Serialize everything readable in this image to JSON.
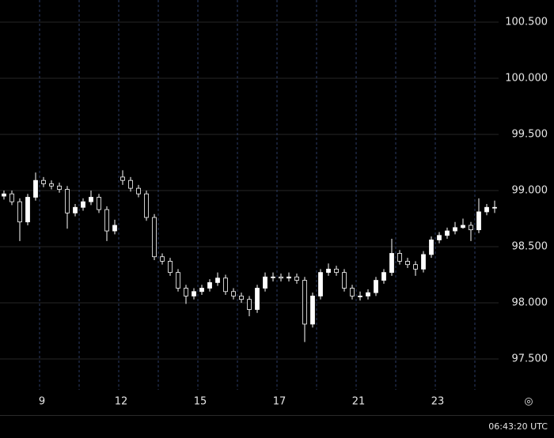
{
  "chart_data": {
    "type": "candlestick",
    "color": "#ffffff",
    "x": [
      0,
      1,
      2,
      3,
      4,
      5,
      6,
      7,
      8,
      9,
      10,
      11,
      12,
      13,
      14,
      15,
      16,
      17,
      18,
      19,
      20,
      21,
      22,
      23,
      24,
      25,
      26,
      27,
      28,
      29,
      30,
      31,
      32,
      33,
      34,
      35,
      36,
      37,
      38,
      39,
      40,
      41,
      42,
      43,
      44,
      45,
      46,
      47,
      48,
      49,
      50,
      51,
      52,
      53,
      54,
      55,
      56,
      57,
      58,
      59,
      60,
      61,
      62
    ],
    "open": [
      98.95,
      98.97,
      98.9,
      98.72,
      98.94,
      99.09,
      99.06,
      99.04,
      99.01,
      98.8,
      98.85,
      98.9,
      98.94,
      98.83,
      98.64,
      99.12,
      99.09,
      99.02,
      98.97,
      98.76,
      98.41,
      98.37,
      98.27,
      98.13,
      98.06,
      98.1,
      98.13,
      98.18,
      98.22,
      98.1,
      98.06,
      98.03,
      97.94,
      98.13,
      98.23,
      98.23,
      98.22,
      98.23,
      98.2,
      97.81,
      98.06,
      98.27,
      98.3,
      98.27,
      98.13,
      98.06,
      98.06,
      98.09,
      98.2,
      98.27,
      98.44,
      98.37,
      98.34,
      98.3,
      98.43,
      98.56,
      98.6,
      98.64,
      98.67,
      98.69,
      98.65,
      98.81,
      98.85
    ],
    "high": [
      99.0,
      99.0,
      98.93,
      98.97,
      99.16,
      99.12,
      99.09,
      99.07,
      99.04,
      98.88,
      98.93,
      99.0,
      98.97,
      98.86,
      98.74,
      99.18,
      99.12,
      99.05,
      99.0,
      98.79,
      98.44,
      98.4,
      98.3,
      98.16,
      98.13,
      98.16,
      98.21,
      98.27,
      98.25,
      98.13,
      98.09,
      98.06,
      98.16,
      98.27,
      98.27,
      98.26,
      98.27,
      98.26,
      98.23,
      98.09,
      98.3,
      98.35,
      98.33,
      98.3,
      98.16,
      98.1,
      98.12,
      98.23,
      98.3,
      98.57,
      98.47,
      98.4,
      98.37,
      98.46,
      98.59,
      98.63,
      98.67,
      98.72,
      98.75,
      98.72,
      98.93,
      98.88,
      98.91
    ],
    "low": [
      98.92,
      98.87,
      98.55,
      98.69,
      98.91,
      99.03,
      99.01,
      98.98,
      98.66,
      98.77,
      98.82,
      98.87,
      98.8,
      98.55,
      98.61,
      99.05,
      98.99,
      98.94,
      98.73,
      98.38,
      98.34,
      98.24,
      98.1,
      97.99,
      98.03,
      98.07,
      98.1,
      98.15,
      98.07,
      98.03,
      98.0,
      97.88,
      97.91,
      98.1,
      98.19,
      98.19,
      98.19,
      98.17,
      97.65,
      97.78,
      98.03,
      98.24,
      98.24,
      98.1,
      98.03,
      98.02,
      98.03,
      98.06,
      98.17,
      98.24,
      98.34,
      98.31,
      98.24,
      98.27,
      98.4,
      98.53,
      98.57,
      98.61,
      98.66,
      98.55,
      98.62,
      98.78,
      98.8
    ],
    "close": [
      98.97,
      98.9,
      98.72,
      98.94,
      99.09,
      99.06,
      99.04,
      99.01,
      98.8,
      98.85,
      98.9,
      98.94,
      98.83,
      98.64,
      98.69,
      99.09,
      99.02,
      98.97,
      98.76,
      98.41,
      98.37,
      98.27,
      98.13,
      98.06,
      98.1,
      98.13,
      98.18,
      98.22,
      98.1,
      98.06,
      98.03,
      97.94,
      98.13,
      98.23,
      98.23,
      98.22,
      98.23,
      98.2,
      97.81,
      98.06,
      98.27,
      98.3,
      98.27,
      98.13,
      98.06,
      98.06,
      98.09,
      98.2,
      98.27,
      98.44,
      98.37,
      98.34,
      98.3,
      98.43,
      98.56,
      98.6,
      98.64,
      98.67,
      98.69,
      98.65,
      98.81,
      98.85,
      98.85
    ],
    "xlim": [
      -0.5,
      63.5
    ],
    "xticks": [
      {
        "value": 4.5,
        "label": "9"
      },
      {
        "value": 9.5,
        "label": null
      },
      {
        "value": 14.5,
        "label": "12"
      },
      {
        "value": 19.5,
        "label": null
      },
      {
        "value": 24.5,
        "label": "15"
      },
      {
        "value": 29.5,
        "label": null
      },
      {
        "value": 34.5,
        "label": "17"
      },
      {
        "value": 39.5,
        "label": null
      },
      {
        "value": 44.5,
        "label": "21"
      },
      {
        "value": 49.5,
        "label": null
      },
      {
        "value": 54.5,
        "label": "23"
      },
      {
        "value": 59.5,
        "label": null
      }
    ],
    "ylim": [
      97.225,
      100.697
    ],
    "yticks": [
      {
        "value": 97.5,
        "label": "97.500"
      },
      {
        "value": 98,
        "label": "98.000"
      },
      {
        "value": 98.5,
        "label": "98.500"
      },
      {
        "value": 99,
        "label": "99.000"
      },
      {
        "value": 99.5,
        "label": "99.500"
      },
      {
        "value": 100,
        "label": "100.000"
      },
      {
        "value": 100.5,
        "label": "100.500"
      }
    ],
    "grid": true,
    "clock": "06:43:20 UTC"
  }
}
